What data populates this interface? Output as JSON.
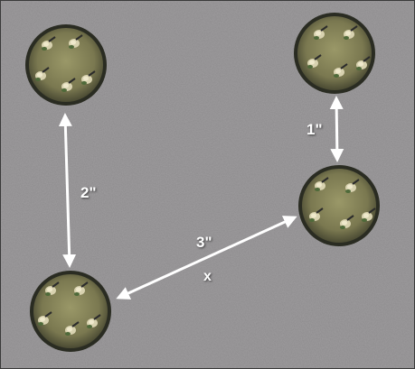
{
  "diagram": {
    "labels": {
      "two_inch": "2\"",
      "one_inch": "1\"",
      "three_inch": "3\"",
      "x": "x"
    },
    "colors": {
      "table": "#8c8a8c",
      "table_dark": "#6e6d70",
      "base_rim": "#2a2c22",
      "base_fill": "#7c7a55",
      "arrow": "#ffffff",
      "frame": "#3a3a3a"
    },
    "bases": [
      {
        "name": "base-top-left",
        "models": 5
      },
      {
        "name": "base-top-right",
        "models": 5
      },
      {
        "name": "base-middle-right",
        "models": 5
      },
      {
        "name": "base-bottom-left",
        "models": 5
      }
    ]
  }
}
